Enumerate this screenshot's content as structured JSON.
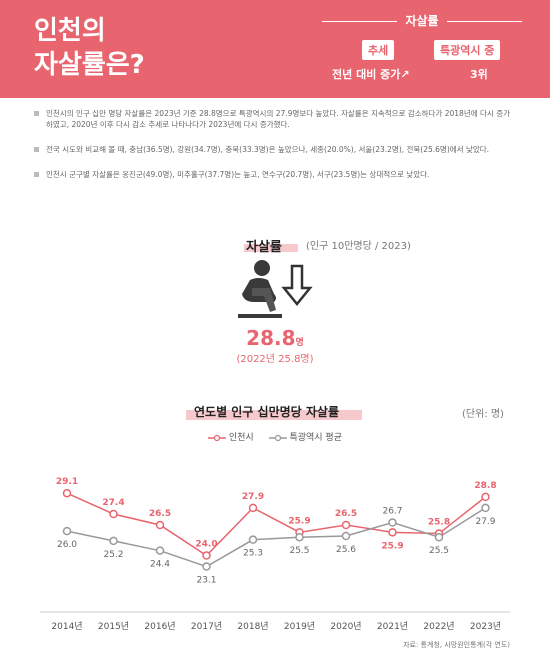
{
  "header": {
    "title_line1": "인천의",
    "title_line2": "자살률은?",
    "category": "자살률",
    "badge_trend": "추세",
    "badge_rank": "특광역시 중",
    "trend_value": "전년 대비 증가↗",
    "rank_value": "3위"
  },
  "bullets": [
    "인천시의 인구 십만 명당 자살률은 2023년 기준 28.8명으로 특광역시의 27.9명보다 높았다. 자살률은 지속적으로 감소하다가 2018년에 다시 증가하였고, 2020년 이후 다시 감소 추세로 나타나다가 2023년에 다시 증가했다.",
    "전국 시도와 비교해 볼 때, 충남(36.5명), 강원(34.7명), 충북(33.3명)은 높았으나, 세종(20.0%), 서울(23.2명), 전북(25.6명)에서 낮았다.",
    "인천시 군구별 자살률은 옹진군(49.0명), 미추홀구(37.7명)는 높고, 연수구(20.7명), 서구(23.5명)는 상대적으로 낮았다."
  ],
  "kpi": {
    "label": "자살률",
    "sub": "(인구 10만명당 / 2023)",
    "value": "28.8",
    "unit": "명",
    "prev": "(2022년 25.8명)",
    "icon": "sitting-person-down-arrow-icon"
  },
  "colors": {
    "accent": "#e8646e",
    "secondary": "#999999",
    "highlight": "#f6c9cc"
  },
  "chart_data": {
    "type": "line",
    "title": "연도별 인구 십만명당 자살률",
    "unit": "(단위: 명)",
    "categories": [
      "2014년",
      "2015년",
      "2016년",
      "2017년",
      "2018년",
      "2019년",
      "2020년",
      "2021년",
      "2022년",
      "2023년"
    ],
    "series": [
      {
        "name": "인천시",
        "color": "#e8646e",
        "values": [
          29.1,
          27.4,
          26.5,
          24.0,
          27.9,
          25.9,
          26.5,
          25.9,
          25.8,
          28.8
        ]
      },
      {
        "name": "특광역시 평균",
        "color": "#999999",
        "values": [
          26.0,
          25.2,
          24.4,
          23.1,
          25.3,
          25.5,
          25.6,
          26.7,
          25.5,
          27.9
        ]
      }
    ],
    "ylim": [
      22,
      31
    ],
    "grid": false
  },
  "source": "자료: 통계청, 사망원인통계(각 연도)"
}
